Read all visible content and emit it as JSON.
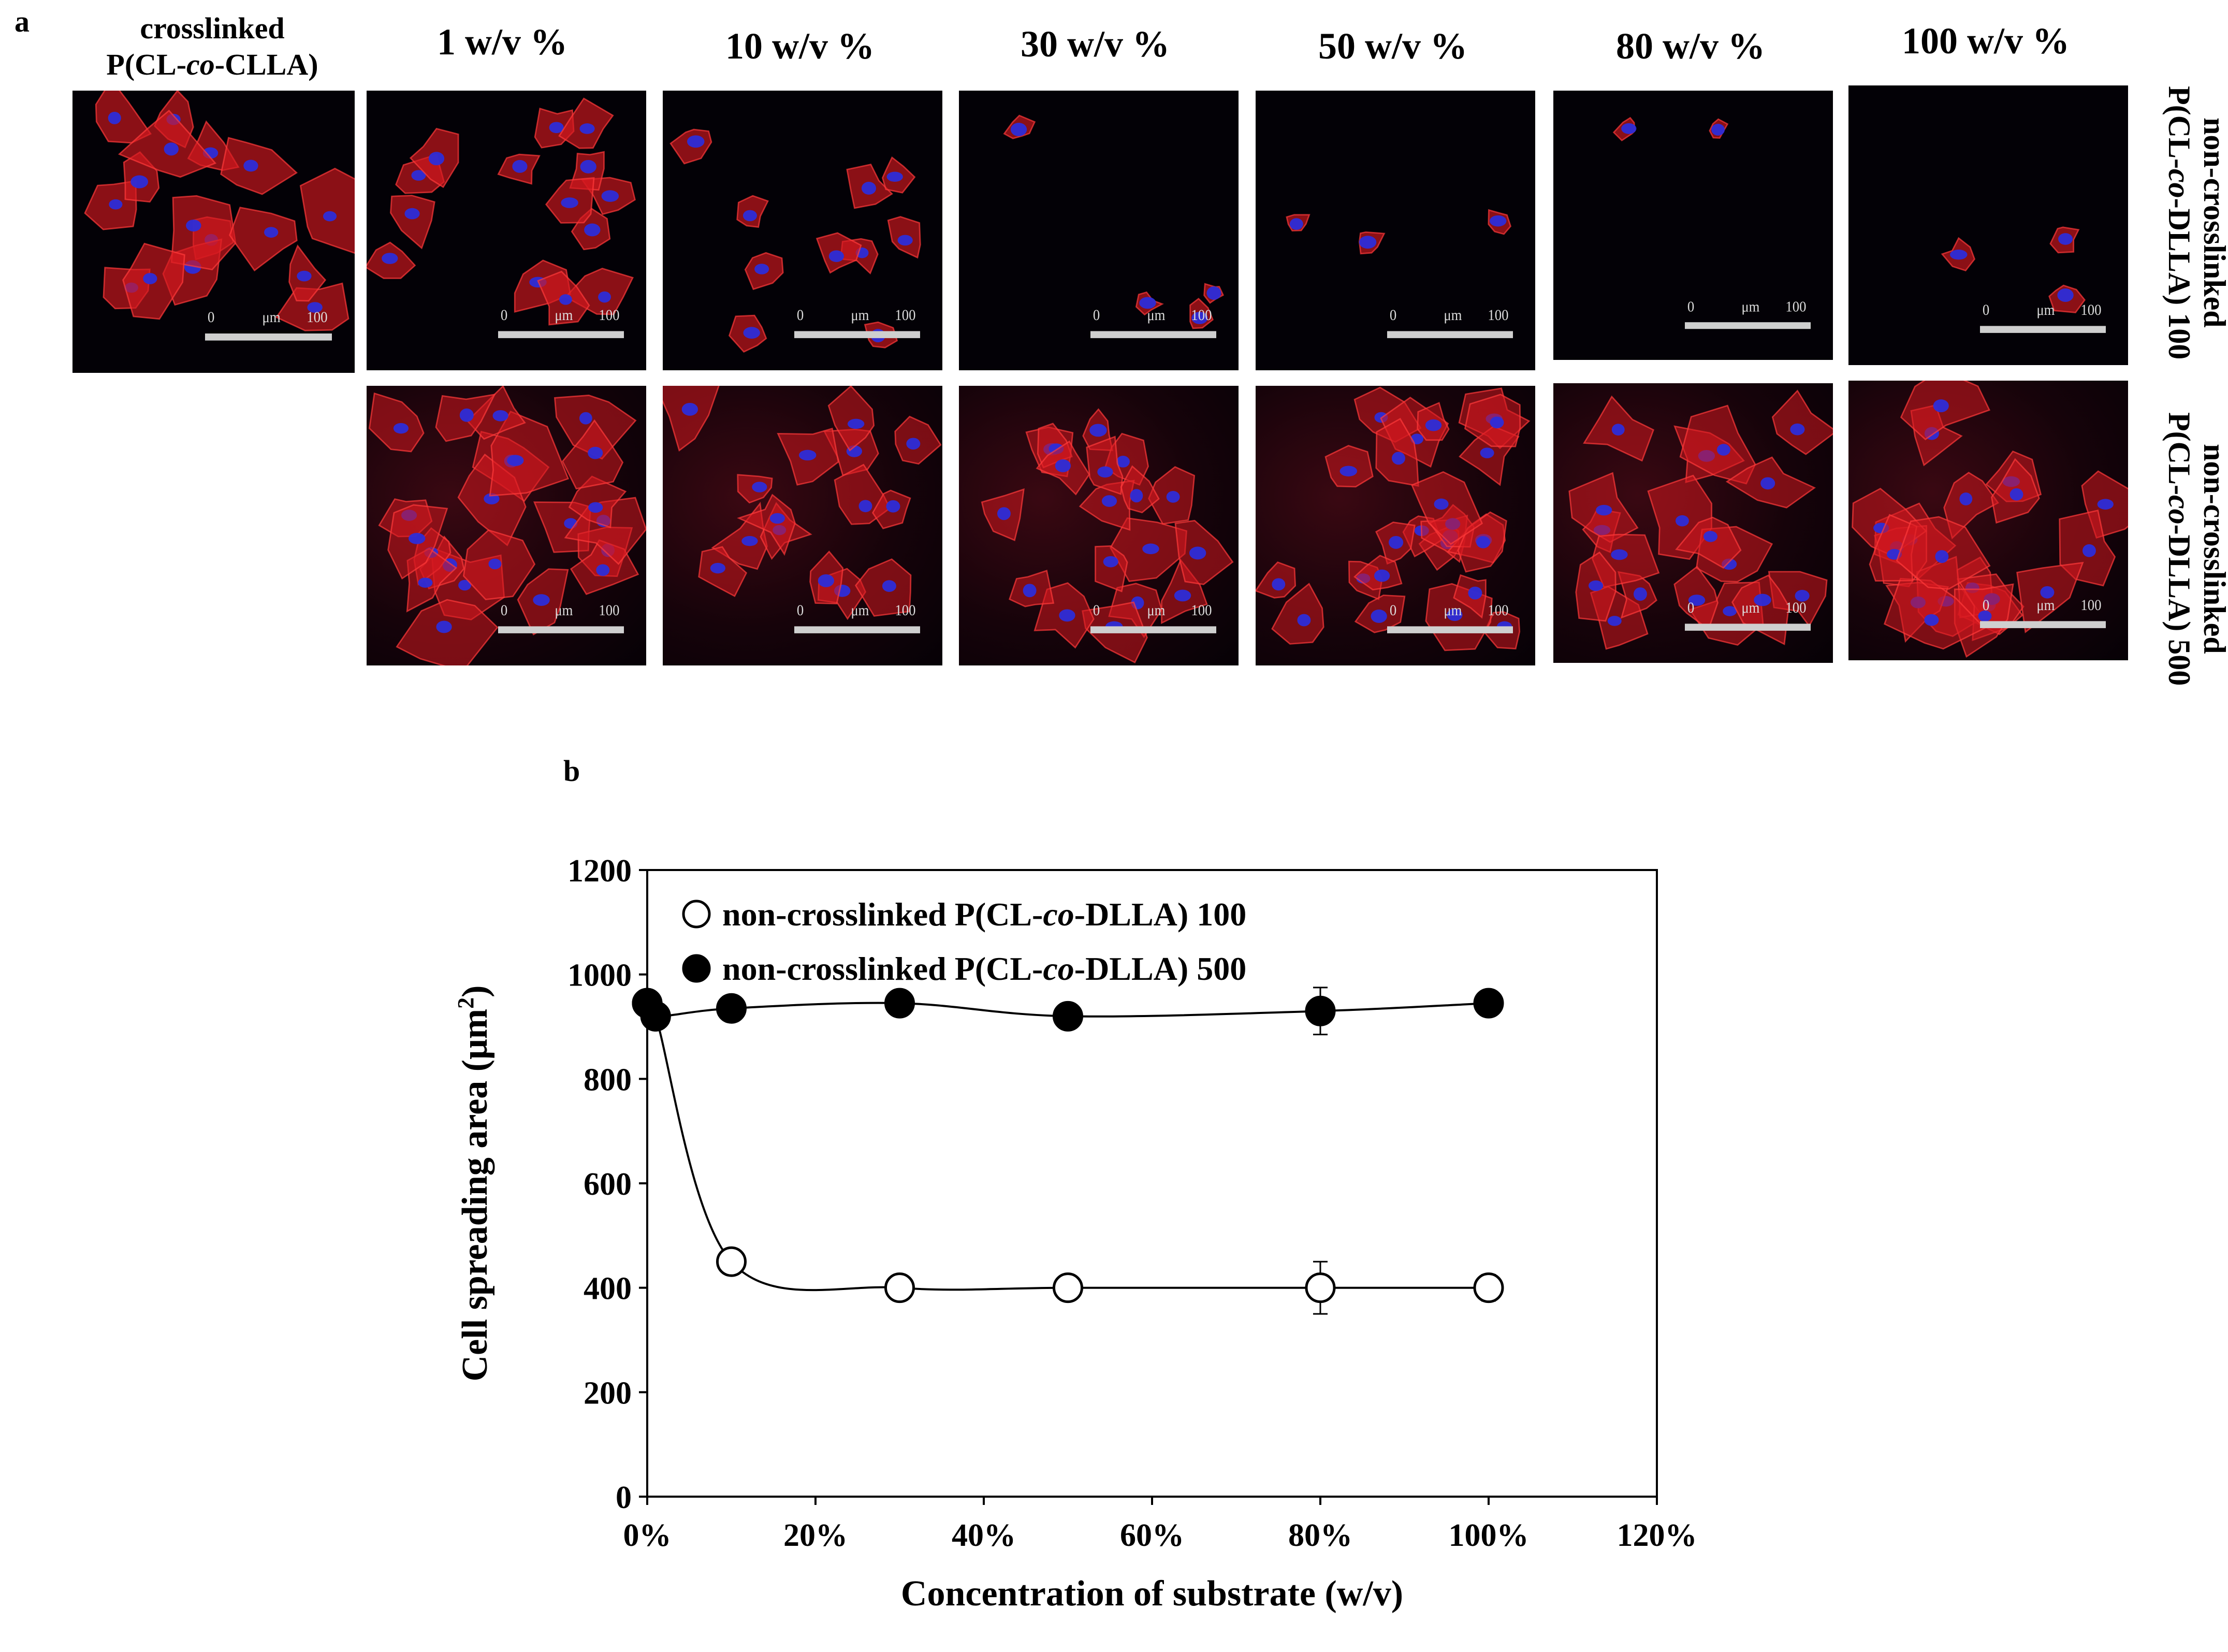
{
  "panel_a": {
    "letter": "a",
    "first_column": {
      "line1": "crosslinked",
      "line2_prefix": "P(CL-",
      "line2_italic": "co",
      "line2_suffix": "-CLLA)"
    },
    "column_headers": [
      "1 w/v %",
      "10 w/v %",
      "30 w/v %",
      "50 w/v %",
      "80 w/v %",
      "100 w/v %"
    ],
    "row_labels": [
      {
        "line1": "non-crosslinked",
        "line2_prefix": "P(CL-",
        "line2_italic": "co",
        "line2_suffix": "-DLLA) 100"
      },
      {
        "line1": "non-crosslinked",
        "line2_prefix": "P(CL-",
        "line2_italic": "co",
        "line2_suffix": "-DLLA) 500"
      }
    ],
    "scale_bar": {
      "start": "0",
      "unit": "μm",
      "end": "100"
    },
    "micrograph_colors": {
      "background": "#030106",
      "actin": "#d4181f",
      "nucleus": "#2d2dd8"
    }
  },
  "panel_b": {
    "letter": "b"
  },
  "chart_data": {
    "type": "scatter",
    "xlabel": "Concentration of substrate (w/v)",
    "ylabel": "Cell spreading area (μm²)",
    "ylabel_parts": {
      "main": "Cell spreading area (μm",
      "sup": "2",
      "end": ")"
    },
    "xlim": [
      0,
      120
    ],
    "ylim": [
      0,
      1200
    ],
    "x_ticks": [
      "0%",
      "20%",
      "40%",
      "60%",
      "80%",
      "100%",
      "120%"
    ],
    "y_ticks": [
      "0",
      "200",
      "400",
      "600",
      "800",
      "1000",
      "1200"
    ],
    "grid": false,
    "legend_position": "top-left",
    "series": [
      {
        "name": "non-crosslinked P(CL-co-DLLA) 100",
        "name_parts": {
          "prefix": "non-crosslinked P(CL-",
          "italic": "co",
          "suffix": "-DLLA) 100"
        },
        "marker": "open-circle",
        "x": [
          0,
          1,
          10,
          30,
          50,
          80,
          100
        ],
        "y": [
          945,
          920,
          450,
          400,
          400,
          400,
          400
        ],
        "error": [
          0,
          0,
          0,
          0,
          0,
          50,
          25
        ]
      },
      {
        "name": "non-crosslinked P(CL-co-DLLA) 500",
        "name_parts": {
          "prefix": "non-crosslinked P(CL-",
          "italic": "co",
          "suffix": "-DLLA) 500"
        },
        "marker": "filled-circle",
        "x": [
          0,
          1,
          10,
          30,
          50,
          80,
          100
        ],
        "y": [
          945,
          920,
          935,
          945,
          920,
          930,
          945
        ],
        "error": [
          0,
          0,
          0,
          0,
          0,
          45,
          0
        ]
      }
    ]
  }
}
